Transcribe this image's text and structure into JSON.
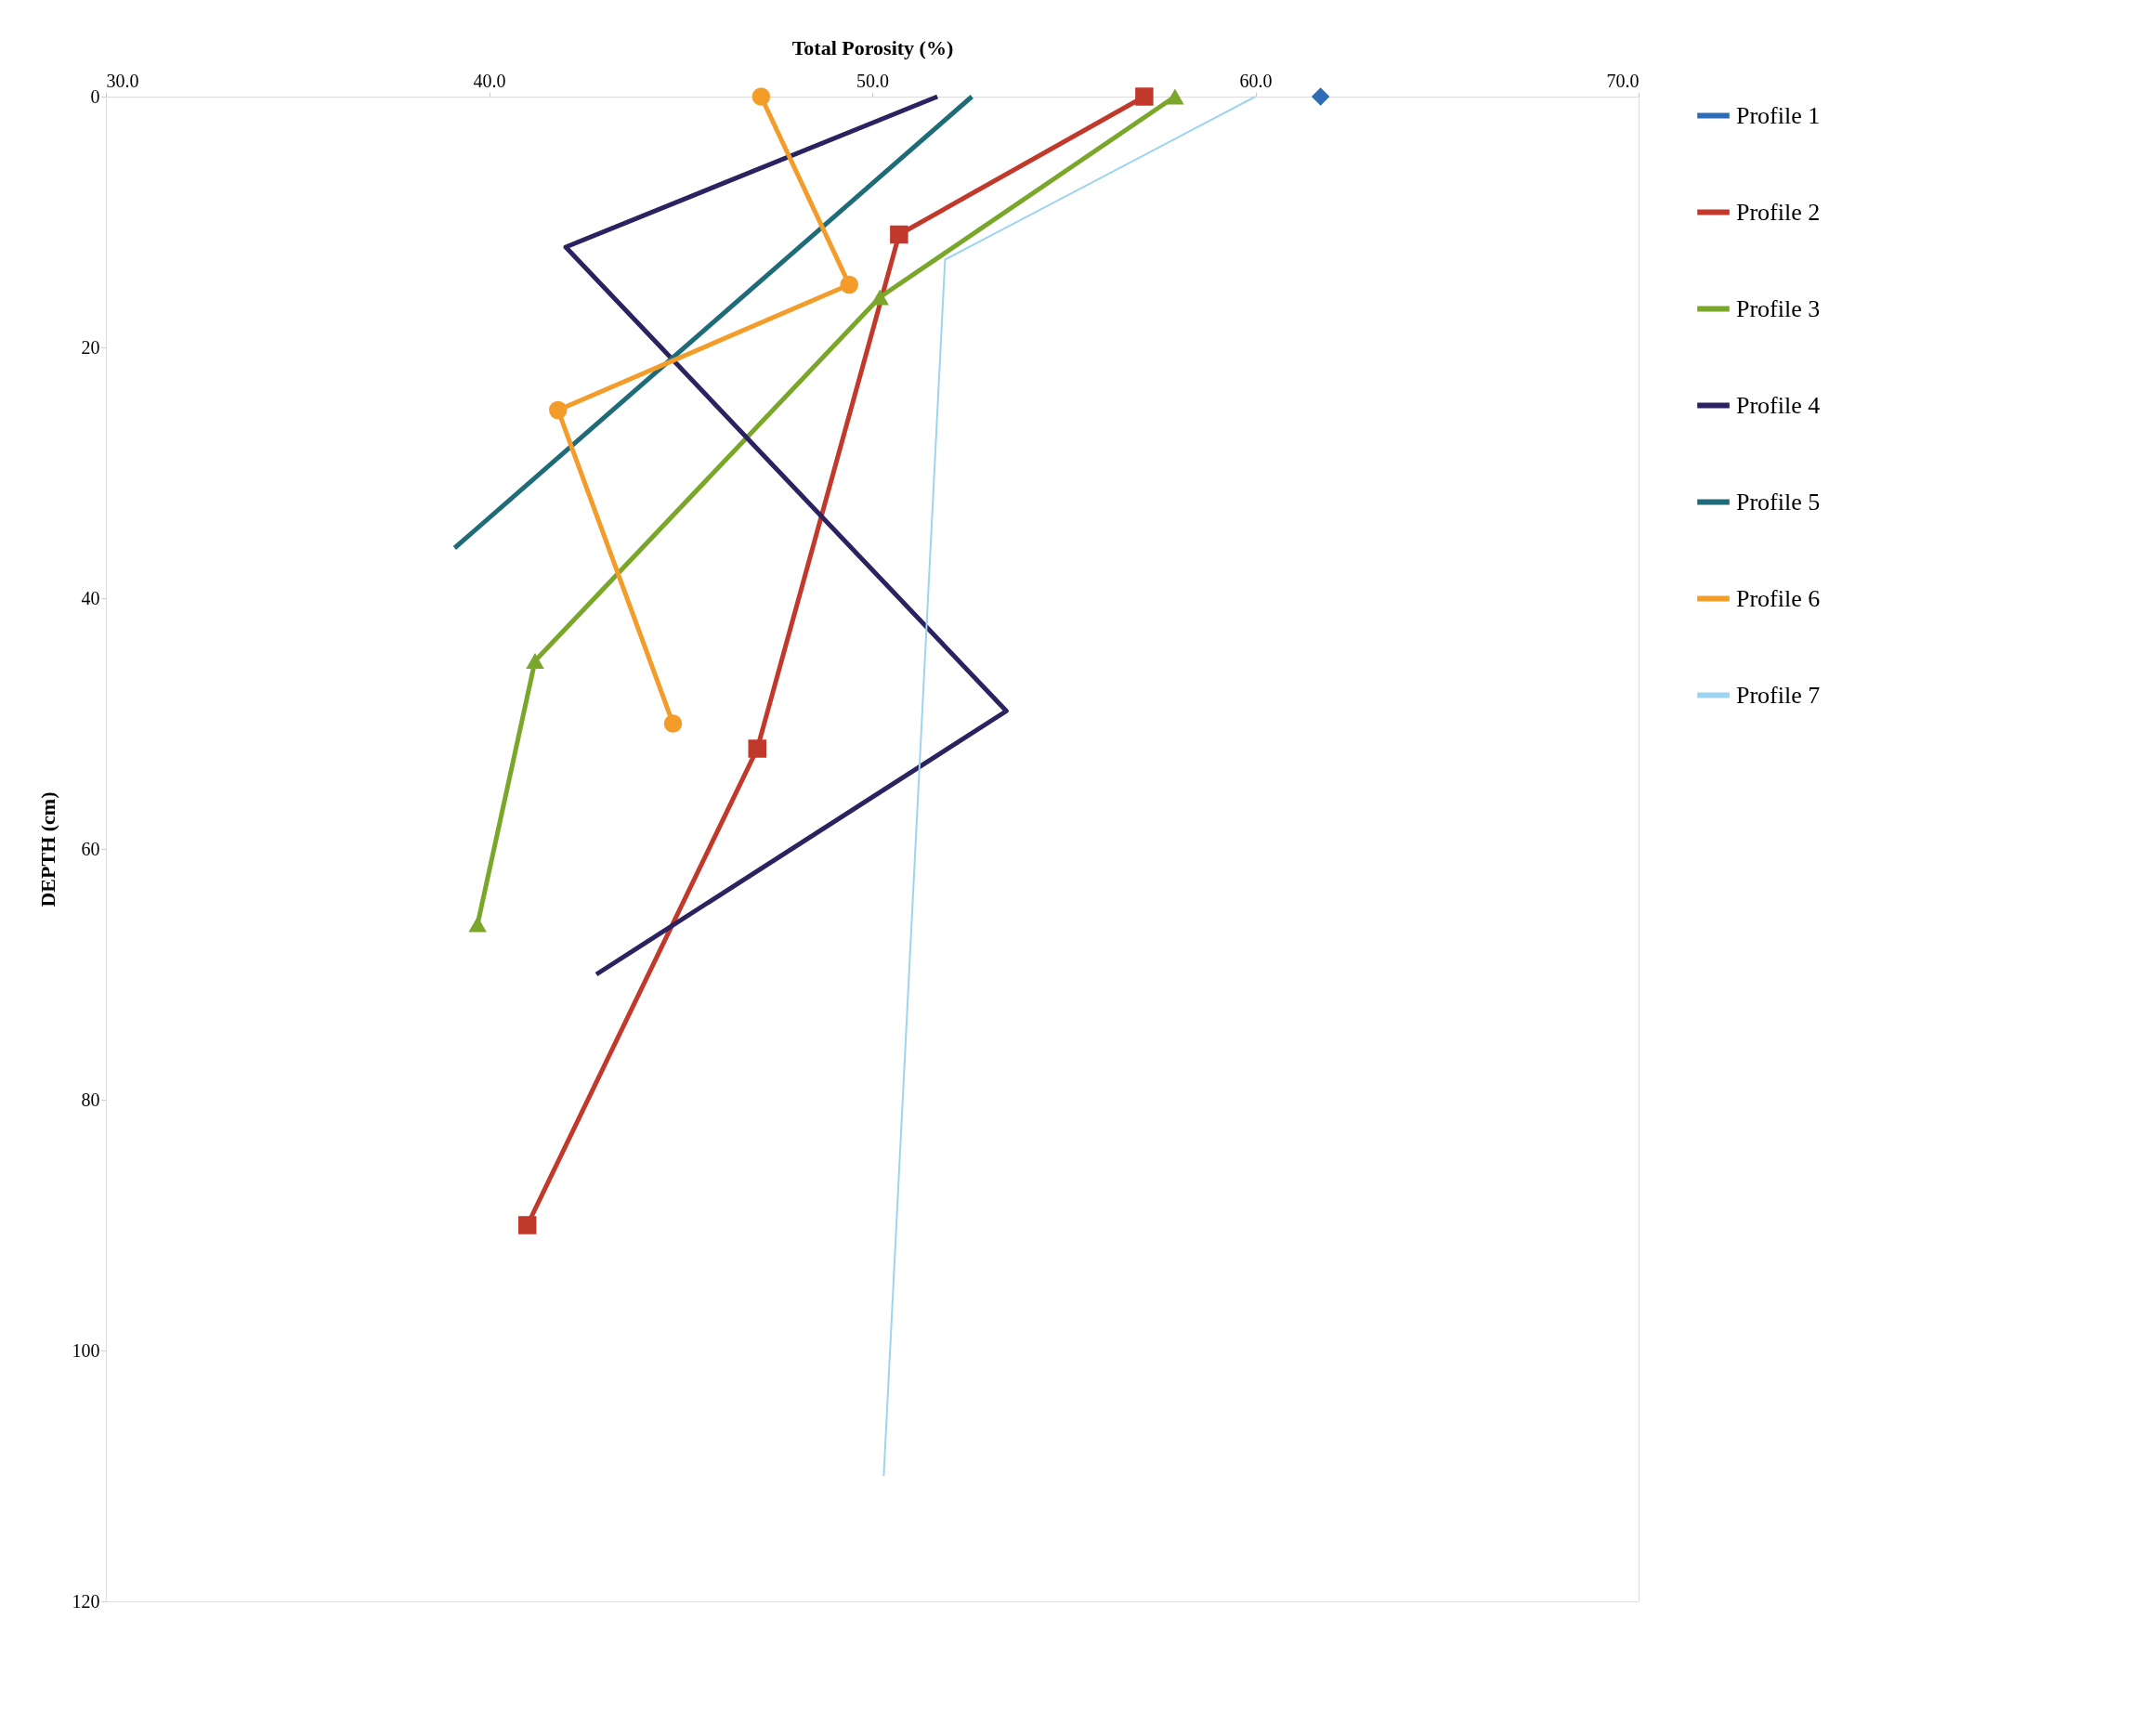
{
  "chart_data": {
    "type": "line",
    "xlabel": "Total Porosity (%)",
    "ylabel": "DEPTH (cm)",
    "xlim": [
      30,
      70
    ],
    "xticks": [
      {
        "value": 30,
        "label": "30.0"
      },
      {
        "value": 40,
        "label": "40.0"
      },
      {
        "value": 50,
        "label": "50.0"
      },
      {
        "value": 60,
        "label": "60.0"
      },
      {
        "value": 70,
        "label": "70.0"
      }
    ],
    "ylim": [
      120,
      0
    ],
    "yticks": [
      0,
      20,
      40,
      60,
      80,
      100,
      120
    ],
    "grid": false,
    "legend": "right",
    "line_style": "solid",
    "series": [
      {
        "name": "Profile 1",
        "color": "#2e6db4",
        "marker": "diamond",
        "x": [
          61.7
        ],
        "values": [
          0
        ]
      },
      {
        "name": "Profile 2",
        "color": "#c0392b",
        "marker": "square",
        "x": [
          57.1,
          50.7,
          47.0,
          41.0
        ],
        "values": [
          0,
          11,
          52,
          90
        ]
      },
      {
        "name": "Profile 3",
        "color": "#7aa62a",
        "marker": "triangle",
        "x": [
          57.9,
          50.2,
          41.2,
          39.7
        ],
        "values": [
          0,
          16,
          45,
          66
        ]
      },
      {
        "name": "Profile 4",
        "color": "#2b2260",
        "marker": "none",
        "x": [
          51.7,
          42.0,
          53.5,
          42.8
        ],
        "values": [
          0,
          12,
          49,
          70
        ]
      },
      {
        "name": "Profile 5",
        "color": "#1f6b78",
        "marker": "none",
        "x": [
          52.6,
          39.1
        ],
        "values": [
          0,
          36
        ]
      },
      {
        "name": "Profile 6",
        "color": "#f39c2a",
        "marker": "circle",
        "x": [
          47.1,
          49.4,
          41.8,
          44.8
        ],
        "values": [
          0,
          15,
          25,
          50
        ]
      },
      {
        "name": "Profile 7",
        "color": "#9fd4f0",
        "marker": "none",
        "x": [
          60.0,
          51.9,
          50.3
        ],
        "values": [
          0,
          13,
          110
        ]
      }
    ]
  }
}
